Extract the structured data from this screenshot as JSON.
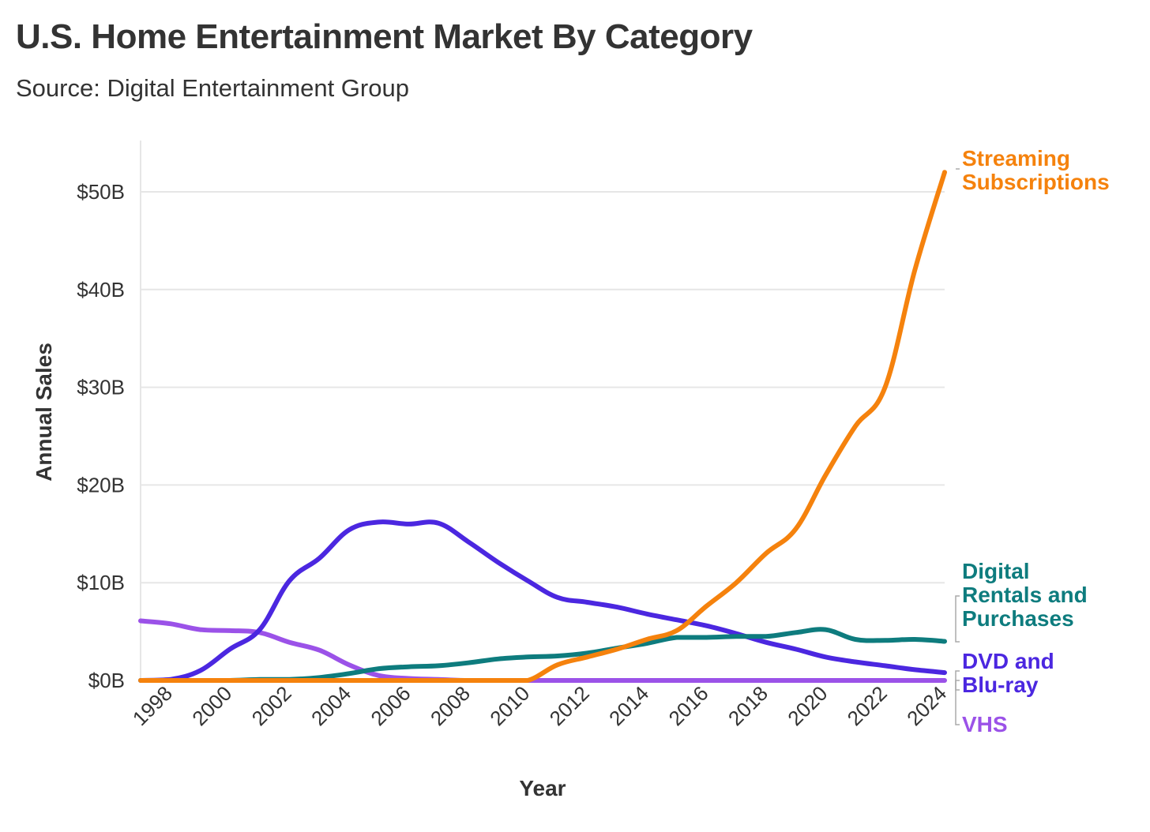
{
  "title": "U.S. Home Entertainment Market By Category",
  "subtitle": "Source: Digital Entertainment Group",
  "chart_data": {
    "type": "line",
    "xlabel": "Year",
    "ylabel": "Annual Sales",
    "xlim": [
      1997,
      2024
    ],
    "ylim": [
      0,
      55
    ],
    "y_ticks": [
      0,
      10,
      20,
      30,
      40,
      50
    ],
    "y_tick_labels": [
      "$0B",
      "$10B",
      "$20B",
      "$30B",
      "$40B",
      "$50B"
    ],
    "x_ticks": [
      1998,
      2000,
      2002,
      2004,
      2006,
      2008,
      2010,
      2012,
      2014,
      2016,
      2018,
      2020,
      2022,
      2024
    ],
    "x_tick_labels": [
      "1998",
      "2000",
      "2002",
      "2004",
      "2006",
      "2008",
      "2010",
      "2012",
      "2014",
      "2016",
      "2018",
      "2020",
      "2022",
      "2024"
    ],
    "grid": true,
    "legend": "direct labels at right end of lines",
    "series": [
      {
        "name": "Streaming Subscriptions",
        "label_lines": [
          "Streaming",
          "Subscriptions"
        ],
        "color": "#F5820D",
        "x": [
          1997,
          1998,
          1999,
          2000,
          2001,
          2002,
          2003,
          2004,
          2005,
          2006,
          2007,
          2008,
          2009,
          2010,
          2011,
          2012,
          2013,
          2014,
          2015,
          2016,
          2017,
          2018,
          2019,
          2020,
          2021,
          2022,
          2023,
          2024
        ],
        "y": [
          0,
          0,
          0,
          0,
          0,
          0,
          0,
          0,
          0,
          0,
          0,
          0,
          0,
          0,
          1.6,
          2.4,
          3.2,
          4.2,
          5.1,
          7.6,
          10,
          13,
          15.5,
          21,
          26,
          30,
          42,
          52
        ]
      },
      {
        "name": "Digital Rentals and Purchases",
        "label_lines": [
          "Digital",
          "Rentals and",
          "Purchases"
        ],
        "color": "#0E7C7E",
        "x": [
          1997,
          1998,
          1999,
          2000,
          2001,
          2002,
          2003,
          2004,
          2005,
          2006,
          2007,
          2008,
          2009,
          2010,
          2011,
          2012,
          2013,
          2014,
          2015,
          2016,
          2017,
          2018,
          2019,
          2020,
          2021,
          2022,
          2023,
          2024
        ],
        "y": [
          0,
          0,
          0,
          0,
          0.1,
          0.1,
          0.3,
          0.7,
          1.2,
          1.4,
          1.5,
          1.8,
          2.2,
          2.4,
          2.5,
          2.8,
          3.3,
          3.8,
          4.4,
          4.4,
          4.5,
          4.5,
          4.9,
          5.2,
          4.2,
          4.1,
          4.2,
          4.0
        ]
      },
      {
        "name": "DVD and Blu-ray",
        "label_lines": [
          "DVD and",
          "Blu-ray"
        ],
        "color": "#4B27E0",
        "x": [
          1997,
          1998,
          1999,
          2000,
          2001,
          2002,
          2003,
          2004,
          2005,
          2006,
          2007,
          2008,
          2009,
          2010,
          2011,
          2012,
          2013,
          2014,
          2015,
          2016,
          2017,
          2018,
          2019,
          2020,
          2021,
          2022,
          2023,
          2024
        ],
        "y": [
          0,
          0.1,
          1,
          3.2,
          5.2,
          10.2,
          12.5,
          15.4,
          16.2,
          16,
          16.1,
          14.2,
          12.1,
          10.2,
          8.5,
          8,
          7.5,
          6.8,
          6.2,
          5.6,
          4.8,
          3.9,
          3.2,
          2.4,
          1.9,
          1.5,
          1.1,
          0.8
        ]
      },
      {
        "name": "VHS",
        "label_lines": [
          "VHS"
        ],
        "color": "#9B52E8",
        "x": [
          1997,
          1998,
          1999,
          2000,
          2001,
          2002,
          2003,
          2004,
          2005,
          2006,
          2007,
          2008,
          2009,
          2010,
          2011,
          2012,
          2013,
          2014,
          2015,
          2016,
          2017,
          2018,
          2019,
          2020,
          2021,
          2022,
          2023,
          2024
        ],
        "y": [
          6.1,
          5.8,
          5.2,
          5.1,
          4.9,
          3.9,
          3.1,
          1.6,
          0.5,
          0.2,
          0.1,
          0,
          0,
          0,
          0,
          0,
          0,
          0,
          0,
          0,
          0,
          0,
          0,
          0,
          0,
          0,
          0,
          0
        ]
      }
    ]
  }
}
